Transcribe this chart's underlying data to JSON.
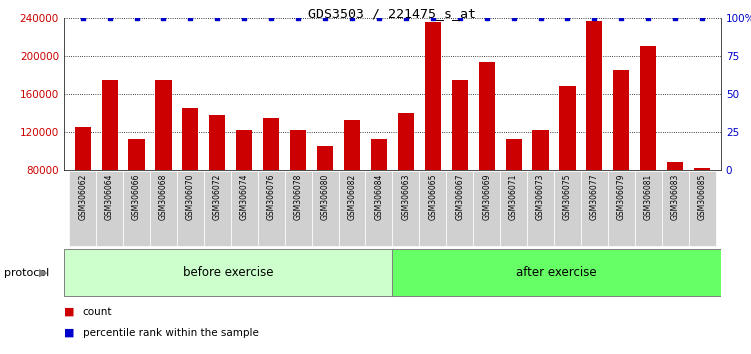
{
  "title": "GDS3503 / 221475_s_at",
  "samples": [
    "GSM306062",
    "GSM306064",
    "GSM306066",
    "GSM306068",
    "GSM306070",
    "GSM306072",
    "GSM306074",
    "GSM306076",
    "GSM306078",
    "GSM306080",
    "GSM306082",
    "GSM306084",
    "GSM306063",
    "GSM306065",
    "GSM306067",
    "GSM306069",
    "GSM306071",
    "GSM306073",
    "GSM306075",
    "GSM306077",
    "GSM306079",
    "GSM306081",
    "GSM306083",
    "GSM306085"
  ],
  "counts": [
    125000,
    175000,
    113000,
    175000,
    145000,
    138000,
    122000,
    135000,
    122000,
    105000,
    132000,
    113000,
    140000,
    235000,
    175000,
    193000,
    113000,
    122000,
    168000,
    237000,
    185000,
    210000,
    88000,
    82000
  ],
  "percentile_ranks": [
    100,
    100,
    100,
    100,
    100,
    100,
    100,
    100,
    100,
    100,
    100,
    100,
    100,
    100,
    100,
    100,
    100,
    100,
    100,
    100,
    100,
    100,
    100,
    100
  ],
  "bar_color": "#cc0000",
  "dot_color": "#0000cc",
  "ylim_left": [
    80000,
    240000
  ],
  "ylim_right": [
    0,
    100
  ],
  "yticks_left": [
    80000,
    120000,
    160000,
    200000,
    240000
  ],
  "yticks_right": [
    0,
    25,
    50,
    75,
    100
  ],
  "ytick_labels_right": [
    "0",
    "25",
    "50",
    "75",
    "100%"
  ],
  "before_count": 12,
  "after_count": 12,
  "before_label": "before exercise",
  "after_label": "after exercise",
  "protocol_label": "protocol",
  "before_color": "#ccffcc",
  "after_color": "#66ff66",
  "legend_count_label": "count",
  "legend_pct_label": "percentile rank within the sample",
  "label_bg_color": "#d0d0d0",
  "separator_color": "#404040",
  "plot_bg_color": "#ffffff"
}
